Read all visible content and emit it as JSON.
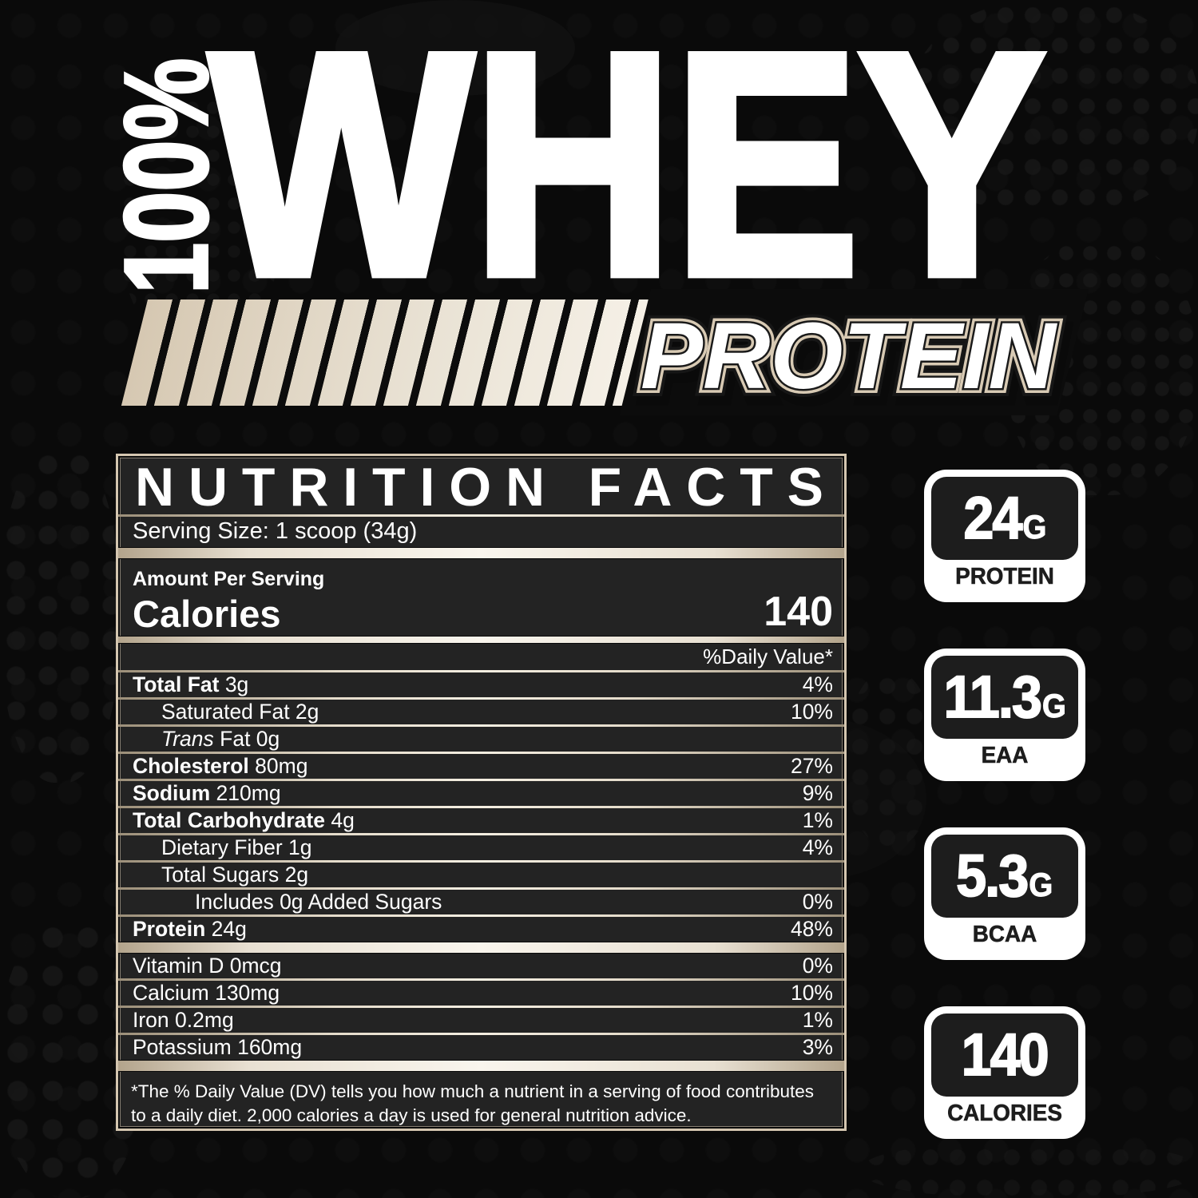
{
  "header": {
    "percent": "100%",
    "title": "WHEY",
    "subtitle": "PROTEIN"
  },
  "panel": {
    "title": "NUTRITION FACTS",
    "serving_size": "Serving Size: 1 scoop (34g)",
    "amount_per_serving": "Amount Per Serving",
    "calories_label": "Calories",
    "calories_value": "140",
    "daily_value_header": "%Daily Value*",
    "rows": [
      {
        "bold": "Total Fat",
        "text": "3g",
        "dv": "4%",
        "indent": 0,
        "sep_after": "thin"
      },
      {
        "bold": "",
        "text": "Saturated Fat 2g",
        "dv": "10%",
        "indent": 1,
        "sep_after": "thin"
      },
      {
        "bold": "",
        "italic": "Trans",
        "text": "Fat 0g",
        "dv": "",
        "indent": 1,
        "sep_after": "thin"
      },
      {
        "bold": "Cholesterol",
        "text": "80mg",
        "dv": "27%",
        "indent": 0,
        "sep_after": "thin"
      },
      {
        "bold": "Sodium",
        "text": "210mg",
        "dv": "9%",
        "indent": 0,
        "sep_after": "thin"
      },
      {
        "bold": "Total Carbohydrate",
        "text": "4g",
        "dv": "1%",
        "indent": 0,
        "sep_after": "thin"
      },
      {
        "bold": "",
        "text": "Dietary Fiber 1g",
        "dv": "4%",
        "indent": 1,
        "sep_after": "thin"
      },
      {
        "bold": "",
        "text": "Total Sugars 2g",
        "dv": "",
        "indent": 1,
        "sep_after": "thin"
      },
      {
        "bold": "",
        "text": "Includes 0g Added Sugars",
        "dv": "0%",
        "indent": 2,
        "sep_after": "thin"
      },
      {
        "bold": "Protein",
        "text": "24g",
        "dv": "48%",
        "indent": 0,
        "sep_after": "thick"
      },
      {
        "bold": "",
        "text": "Vitamin D 0mcg",
        "dv": "0%",
        "indent": 0,
        "sep_after": "thin"
      },
      {
        "bold": "",
        "text": "Calcium 130mg",
        "dv": "10%",
        "indent": 0,
        "sep_after": "thin"
      },
      {
        "bold": "",
        "text": "Iron 0.2mg",
        "dv": "1%",
        "indent": 0,
        "sep_after": "thin"
      },
      {
        "bold": "",
        "text": "Potassium 160mg",
        "dv": "3%",
        "indent": 0,
        "sep_after": "thick"
      }
    ],
    "footnote": "*The % Daily Value (DV) tells you how much a nutrient in a serving of food contributes to a daily diet. 2,000 calories a day is used for general nutrition advice."
  },
  "badges": [
    {
      "value": "24",
      "unit": "G",
      "label": "PROTEIN"
    },
    {
      "value": "11.3",
      "unit": "G",
      "label": "EAA"
    },
    {
      "value": "5.3",
      "unit": "G",
      "label": "BCAA"
    },
    {
      "value": "140",
      "unit": "",
      "label": "CALORIES"
    }
  ],
  "colors": {
    "background": "#0a0a0a",
    "panel_background": "#232323",
    "beige": "#d6c8b2",
    "beige_light": "#f7f2e9",
    "panel_border": "#d4c6b0",
    "badge_dark": "#1d1d1d",
    "text_white": "#ffffff"
  }
}
